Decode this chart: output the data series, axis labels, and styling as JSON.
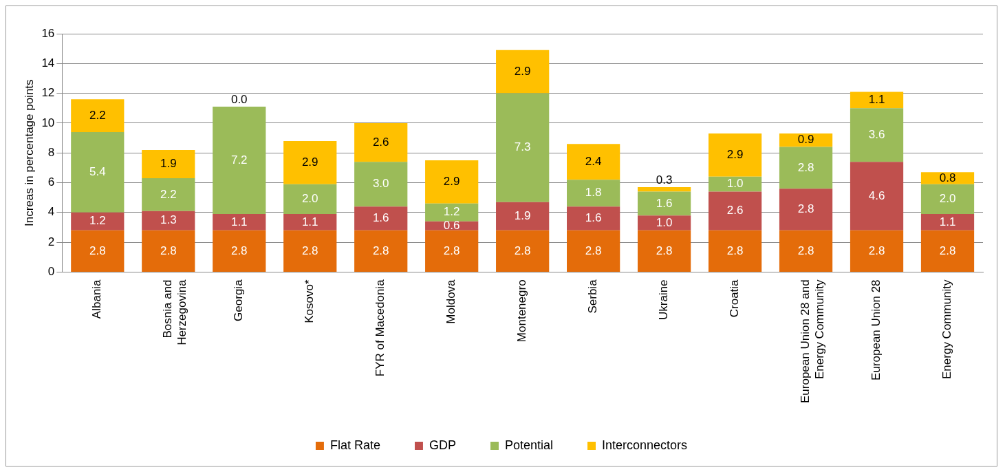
{
  "chart_data": {
    "type": "bar",
    "stacked": true,
    "ylabel": "Increas in percentage points",
    "categories": [
      "Albania",
      "Bosnia and Herzegovina",
      "Georgia",
      "Kosovo*",
      "FYR of Macedonia",
      "Moldova",
      "Montenegro",
      "Serbia",
      "Ukraine",
      "Croatia",
      "European Union 28 and Energy Community",
      "European Union 28",
      "Energy Community"
    ],
    "series": [
      {
        "name": "Flat Rate",
        "color": "#e46c0a",
        "values": [
          2.8,
          2.8,
          2.8,
          2.8,
          2.8,
          2.8,
          2.8,
          2.8,
          2.8,
          2.8,
          2.8,
          2.8,
          2.8
        ],
        "value_labels": [
          "2.8",
          "2.8",
          "2.8",
          "2.8",
          "2.8",
          "2.8",
          "2.8",
          "2.8",
          "2.8",
          "2.8",
          "2.8",
          "2.8",
          "2.8"
        ]
      },
      {
        "name": "GDP",
        "color": "#c0504d",
        "values": [
          1.2,
          1.3,
          1.1,
          1.1,
          1.6,
          0.6,
          1.9,
          1.6,
          1.0,
          2.6,
          2.8,
          4.6,
          1.1
        ],
        "value_labels": [
          "1.2",
          "1.3",
          "1.1",
          "1.1",
          "1.6",
          "0.6",
          "1.9",
          "1.6",
          "1.0",
          "2.6",
          "2.8",
          "4.6",
          "1.1"
        ]
      },
      {
        "name": "Potential",
        "color": "#9bbb59",
        "values": [
          5.4,
          2.2,
          7.2,
          2.0,
          3.0,
          1.2,
          7.3,
          1.8,
          1.6,
          1.0,
          2.8,
          3.6,
          2.0
        ],
        "value_labels": [
          "5.4",
          "2.2",
          "7.2",
          "2.0",
          "3.0",
          "1.2",
          "7.3",
          "1.8",
          "1.6",
          "1.0",
          "2.8",
          "3.6",
          "2.0"
        ]
      },
      {
        "name": "Interconnectors",
        "color": "#ffc000",
        "values": [
          2.2,
          1.9,
          0.0,
          2.9,
          2.6,
          2.9,
          2.9,
          2.4,
          0.3,
          2.9,
          0.9,
          1.1,
          0.8
        ],
        "value_labels": [
          "2.2",
          "1.9",
          "0.0",
          "2.9",
          "2.6",
          "2.9",
          "2.9",
          "2.4",
          "0.3",
          "2.9",
          "0.9",
          "1.1",
          "0.8"
        ]
      }
    ],
    "ylim": [
      0,
      16
    ],
    "yticks": [
      0,
      2,
      4,
      6,
      8,
      10,
      12,
      14,
      16
    ],
    "grid": "y",
    "legend": "bottom"
  }
}
